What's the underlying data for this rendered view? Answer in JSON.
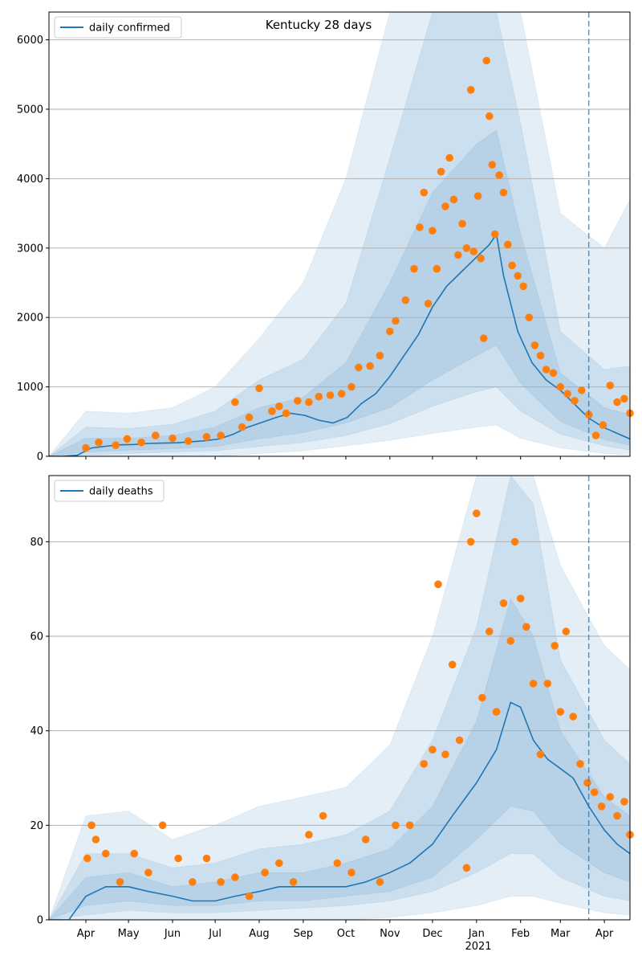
{
  "colors": {
    "line": "#1f77b4",
    "points": "#ff7f0e",
    "band": "#1f77b4",
    "grid": "#b0b0b0",
    "axis": "#000000"
  },
  "chart_data": [
    {
      "type": "line",
      "title": "Kentucky 28 days",
      "legend": {
        "placement": "top-left",
        "label": "daily confirmed"
      },
      "ylim": [
        0,
        6400
      ],
      "yticks": [
        0,
        1000,
        2000,
        3000,
        4000,
        5000,
        6000
      ],
      "grid": "horizontal",
      "vline": "2021-03-21",
      "line_series": {
        "name": "daily confirmed",
        "x": [
          "2020-03-06",
          "2020-03-16",
          "2020-03-26",
          "2020-04-05",
          "2020-04-15",
          "2020-04-25",
          "2020-05-05",
          "2020-05-15",
          "2020-05-25",
          "2020-06-04",
          "2020-06-14",
          "2020-06-24",
          "2020-07-04",
          "2020-07-14",
          "2020-07-24",
          "2020-08-03",
          "2020-08-13",
          "2020-08-23",
          "2020-09-02",
          "2020-09-12",
          "2020-09-22",
          "2020-10-02",
          "2020-10-12",
          "2020-10-22",
          "2020-11-01",
          "2020-11-11",
          "2020-11-21",
          "2020-12-01",
          "2020-12-11",
          "2020-12-21",
          "2020-12-31",
          "2021-01-10",
          "2021-01-15",
          "2021-01-20",
          "2021-01-30",
          "2021-02-09",
          "2021-02-19",
          "2021-03-01",
          "2021-03-11",
          "2021-03-21",
          "2021-03-31",
          "2021-04-10",
          "2021-04-19"
        ],
        "y": [
          0,
          0,
          15,
          120,
          145,
          165,
          170,
          185,
          190,
          195,
          210,
          225,
          250,
          320,
          420,
          490,
          560,
          620,
          590,
          520,
          480,
          560,
          760,
          900,
          1150,
          1450,
          1750,
          2150,
          2450,
          2650,
          2850,
          3050,
          3200,
          2600,
          1800,
          1350,
          1100,
          950,
          750,
          550,
          420,
          330,
          250
        ]
      },
      "scatter_series": {
        "x": [
          "2020-04-01",
          "2020-04-10",
          "2020-04-22",
          "2020-04-30",
          "2020-05-10",
          "2020-05-20",
          "2020-06-01",
          "2020-06-12",
          "2020-06-25",
          "2020-07-05",
          "2020-07-15",
          "2020-07-20",
          "2020-07-25",
          "2020-08-01",
          "2020-08-10",
          "2020-08-15",
          "2020-08-20",
          "2020-08-28",
          "2020-09-05",
          "2020-09-12",
          "2020-09-20",
          "2020-09-28",
          "2020-10-05",
          "2020-10-10",
          "2020-10-18",
          "2020-10-25",
          "2020-11-01",
          "2020-11-05",
          "2020-11-12",
          "2020-11-18",
          "2020-11-22",
          "2020-11-25",
          "2020-11-28",
          "2020-12-01",
          "2020-12-04",
          "2020-12-07",
          "2020-12-10",
          "2020-12-13",
          "2020-12-16",
          "2020-12-19",
          "2020-12-22",
          "2020-12-25",
          "2020-12-28",
          "2020-12-30",
          "2021-01-02",
          "2021-01-04",
          "2021-01-06",
          "2021-01-08",
          "2021-01-10",
          "2021-01-12",
          "2021-01-14",
          "2021-01-17",
          "2021-01-20",
          "2021-01-23",
          "2021-01-26",
          "2021-01-30",
          "2021-02-03",
          "2021-02-07",
          "2021-02-11",
          "2021-02-15",
          "2021-02-19",
          "2021-02-24",
          "2021-03-01",
          "2021-03-06",
          "2021-03-11",
          "2021-03-16",
          "2021-03-21",
          "2021-03-26",
          "2021-03-31",
          "2021-04-05",
          "2021-04-10",
          "2021-04-15",
          "2021-04-19"
        ],
        "y": [
          120,
          200,
          160,
          250,
          200,
          300,
          260,
          220,
          280,
          300,
          780,
          420,
          560,
          980,
          650,
          720,
          620,
          800,
          780,
          860,
          880,
          900,
          1000,
          1280,
          1300,
          1450,
          1800,
          1950,
          2250,
          2700,
          3300,
          3800,
          2200,
          3250,
          2700,
          4100,
          3600,
          4300,
          3700,
          2900,
          3350,
          3000,
          5280,
          2950,
          3750,
          2850,
          1700,
          5700,
          4900,
          4200,
          3200,
          4050,
          3800,
          3050,
          2750,
          2600,
          2450,
          2000,
          1600,
          1450,
          1250,
          1200,
          1000,
          900,
          800,
          950,
          600,
          300,
          450,
          1020,
          780,
          830,
          620
        ]
      },
      "bands": [
        {
          "x": [
            "2020-03-06",
            "2020-04-01",
            "2020-05-01",
            "2020-06-01",
            "2020-07-01",
            "2020-08-01",
            "2020-09-01",
            "2020-10-01",
            "2020-11-01",
            "2020-12-01",
            "2021-01-01",
            "2021-01-15",
            "2021-02-01",
            "2021-03-01",
            "2021-04-01",
            "2021-04-19"
          ],
          "lo": [
            0,
            0,
            0,
            0,
            0,
            40,
            80,
            150,
            230,
            330,
            420,
            450,
            260,
            120,
            40,
            20
          ],
          "hi": [
            0,
            650,
            620,
            700,
            1000,
            1700,
            2500,
            4000,
            6400,
            6400,
            6400,
            6400,
            6400,
            3500,
            3000,
            3700
          ]
        },
        {
          "x": [
            "2020-03-06",
            "2020-04-01",
            "2020-05-01",
            "2020-06-01",
            "2020-07-01",
            "2020-08-01",
            "2020-09-01",
            "2020-10-01",
            "2020-11-01",
            "2020-12-01",
            "2021-01-01",
            "2021-01-15",
            "2021-02-01",
            "2021-03-01",
            "2021-04-01",
            "2021-04-19"
          ],
          "lo": [
            0,
            20,
            40,
            60,
            80,
            140,
            200,
            300,
            470,
            720,
            930,
            1000,
            650,
            320,
            150,
            90
          ],
          "hi": [
            0,
            420,
            400,
            460,
            650,
            1100,
            1400,
            2200,
            4300,
            6400,
            6400,
            6400,
            4800,
            1800,
            1250,
            1300
          ]
        },
        {
          "x": [
            "2020-03-06",
            "2020-04-01",
            "2020-05-01",
            "2020-06-01",
            "2020-07-01",
            "2020-08-01",
            "2020-09-01",
            "2020-10-01",
            "2020-11-01",
            "2020-12-01",
            "2021-01-01",
            "2021-01-15",
            "2021-02-01",
            "2021-03-01",
            "2021-04-01",
            "2021-04-19"
          ],
          "lo": [
            0,
            60,
            90,
            110,
            140,
            250,
            340,
            480,
            700,
            1100,
            1450,
            1600,
            1050,
            500,
            240,
            160
          ],
          "hi": [
            0,
            260,
            260,
            300,
            420,
            700,
            850,
            1350,
            2500,
            3800,
            4500,
            4700,
            3200,
            1200,
            700,
            600
          ]
        }
      ]
    },
    {
      "type": "line",
      "legend": {
        "placement": "top-left",
        "label": "daily deaths"
      },
      "ylim": [
        0,
        94
      ],
      "yticks": [
        0,
        20,
        40,
        60,
        80
      ],
      "grid": "horizontal",
      "vline": "2021-03-21",
      "xtick_labels": [
        "Apr",
        "May",
        "Jun",
        "Jul",
        "Aug",
        "Sep",
        "Oct",
        "Nov",
        "Dec",
        "Jan",
        "Feb",
        "Mar",
        "Apr"
      ],
      "xtick_dates": [
        "2020-04-01",
        "2020-05-01",
        "2020-06-01",
        "2020-07-01",
        "2020-08-01",
        "2020-09-01",
        "2020-10-01",
        "2020-11-01",
        "2020-12-01",
        "2021-01-01",
        "2021-02-01",
        "2021-03-01",
        "2021-04-01"
      ],
      "year_label": "2021",
      "line_series": {
        "name": "daily deaths",
        "x": [
          "2020-03-06",
          "2020-03-20",
          "2020-04-01",
          "2020-04-15",
          "2020-05-01",
          "2020-05-15",
          "2020-06-01",
          "2020-06-15",
          "2020-07-01",
          "2020-07-15",
          "2020-08-01",
          "2020-08-15",
          "2020-09-01",
          "2020-09-15",
          "2020-10-01",
          "2020-10-15",
          "2020-11-01",
          "2020-11-15",
          "2020-12-01",
          "2020-12-15",
          "2021-01-01",
          "2021-01-15",
          "2021-01-25",
          "2021-02-01",
          "2021-02-10",
          "2021-02-20",
          "2021-03-01",
          "2021-03-10",
          "2021-03-21",
          "2021-04-01",
          "2021-04-10",
          "2021-04-19"
        ],
        "y": [
          0,
          0,
          5,
          7,
          7,
          6,
          5,
          4,
          4,
          5,
          6,
          7,
          7,
          7,
          7,
          8,
          10,
          12,
          16,
          22,
          29,
          36,
          46,
          45,
          38,
          34,
          32,
          30,
          24,
          19,
          16,
          14
        ]
      },
      "scatter_series": {
        "x": [
          "2020-04-02",
          "2020-04-05",
          "2020-04-08",
          "2020-04-15",
          "2020-04-25",
          "2020-05-05",
          "2020-05-15",
          "2020-05-25",
          "2020-06-05",
          "2020-06-15",
          "2020-06-25",
          "2020-07-05",
          "2020-07-15",
          "2020-07-25",
          "2020-08-05",
          "2020-08-15",
          "2020-08-25",
          "2020-09-05",
          "2020-09-15",
          "2020-09-25",
          "2020-10-05",
          "2020-10-15",
          "2020-10-25",
          "2020-11-05",
          "2020-11-15",
          "2020-11-25",
          "2020-12-01",
          "2020-12-05",
          "2020-12-10",
          "2020-12-15",
          "2020-12-20",
          "2020-12-25",
          "2020-12-28",
          "2021-01-01",
          "2021-01-05",
          "2021-01-10",
          "2021-01-15",
          "2021-01-20",
          "2021-01-25",
          "2021-01-28",
          "2021-02-01",
          "2021-02-05",
          "2021-02-10",
          "2021-02-15",
          "2021-02-20",
          "2021-02-25",
          "2021-03-01",
          "2021-03-05",
          "2021-03-10",
          "2021-03-15",
          "2021-03-20",
          "2021-03-25",
          "2021-03-30",
          "2021-04-05",
          "2021-04-10",
          "2021-04-15",
          "2021-04-19"
        ],
        "y": [
          13,
          20,
          17,
          14,
          8,
          14,
          10,
          20,
          13,
          8,
          13,
          8,
          9,
          5,
          10,
          12,
          8,
          18,
          22,
          12,
          10,
          17,
          8,
          20,
          20,
          33,
          36,
          71,
          35,
          54,
          38,
          11,
          80,
          86,
          47,
          61,
          44,
          67,
          59,
          80,
          68,
          62,
          50,
          35,
          50,
          58,
          44,
          61,
          43,
          33,
          29,
          27,
          24,
          26,
          22,
          25,
          18
        ]
      },
      "bands": [
        {
          "x": [
            "2020-03-06",
            "2020-04-01",
            "2020-05-01",
            "2020-06-01",
            "2020-07-01",
            "2020-08-01",
            "2020-09-01",
            "2020-10-01",
            "2020-11-01",
            "2020-12-01",
            "2021-01-01",
            "2021-01-25",
            "2021-02-10",
            "2021-03-01",
            "2021-04-01",
            "2021-04-19"
          ],
          "lo": [
            0,
            0,
            0,
            0,
            0,
            0,
            0,
            0,
            0.5,
            1.5,
            3,
            5,
            5,
            3.5,
            1.5,
            1
          ],
          "hi": [
            0,
            22,
            23,
            17,
            20,
            24,
            26,
            28,
            37,
            60,
            94,
            94,
            94,
            75,
            58,
            53
          ]
        },
        {
          "x": [
            "2020-03-06",
            "2020-04-01",
            "2020-05-01",
            "2020-06-01",
            "2020-07-01",
            "2020-08-01",
            "2020-09-01",
            "2020-10-01",
            "2020-11-01",
            "2020-12-01",
            "2021-01-01",
            "2021-01-25",
            "2021-02-10",
            "2021-03-01",
            "2021-04-01",
            "2021-04-19"
          ],
          "lo": [
            0,
            1,
            2,
            1.5,
            1.5,
            2,
            2.5,
            3,
            4,
            6,
            10,
            14,
            14,
            9,
            5,
            4
          ],
          "hi": [
            0,
            14,
            14,
            11,
            12,
            15,
            16,
            18,
            23,
            38,
            62,
            94,
            88,
            55,
            38,
            33
          ]
        },
        {
          "x": [
            "2020-03-06",
            "2020-04-01",
            "2020-05-01",
            "2020-06-01",
            "2020-07-01",
            "2020-08-01",
            "2020-09-01",
            "2020-10-01",
            "2020-11-01",
            "2020-12-01",
            "2021-01-01",
            "2021-01-25",
            "2021-02-10",
            "2021-03-01",
            "2021-04-01",
            "2021-04-19"
          ],
          "lo": [
            0,
            3,
            4,
            3,
            3,
            4,
            4,
            5,
            6,
            9,
            17,
            24,
            23,
            16,
            10,
            8
          ],
          "hi": [
            0,
            9,
            10,
            7,
            8,
            10,
            10,
            12,
            15,
            24,
            42,
            68,
            60,
            40,
            26,
            22
          ]
        }
      ]
    }
  ]
}
